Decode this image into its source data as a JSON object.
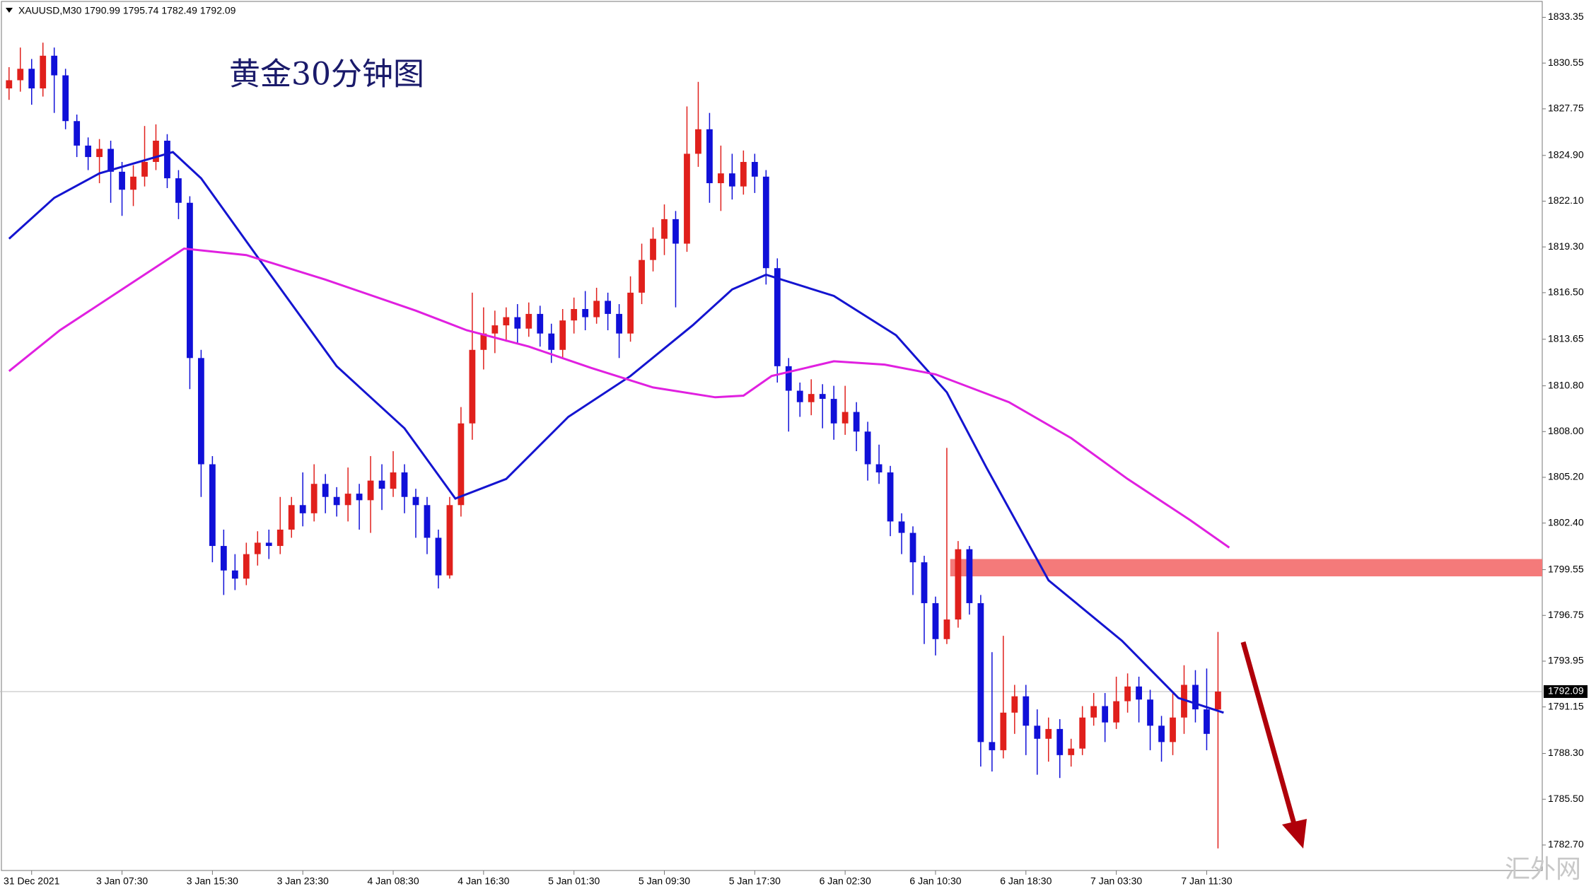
{
  "chart_data": {
    "type": "candlestick",
    "header": "XAUUSD,M30  1790.99 1795.74 1782.49 1792.09",
    "title": "黄金30分钟图",
    "watermark": "汇外网",
    "up_color": "#e0201c",
    "down_color": "#1010d8",
    "xlim": [
      -0.8,
      135.7
    ],
    "ylim": [
      1781.14,
      1834.41
    ],
    "xticks": [
      {
        "value": 2,
        "label": "31 Dec 2021"
      },
      {
        "value": 10,
        "label": "3 Jan 07:30"
      },
      {
        "value": 18,
        "label": "3 Jan 15:30"
      },
      {
        "value": 26,
        "label": "3 Jan 23:30"
      },
      {
        "value": 34,
        "label": "4 Jan 08:30"
      },
      {
        "value": 42,
        "label": "4 Jan 16:30"
      },
      {
        "value": 50,
        "label": "5 Jan 01:30"
      },
      {
        "value": 58,
        "label": "5 Jan 09:30"
      },
      {
        "value": 66,
        "label": "5 Jan 17:30"
      },
      {
        "value": 74,
        "label": "6 Jan 02:30"
      },
      {
        "value": 82,
        "label": "6 Jan 10:30"
      },
      {
        "value": 90,
        "label": "6 Jan 18:30"
      },
      {
        "value": 98,
        "label": "7 Jan 03:30"
      },
      {
        "value": 106,
        "label": "7 Jan 11:30"
      }
    ],
    "yticks": [
      1833.35,
      1830.55,
      1827.75,
      {
        "value": 1824.9,
        "label": "1824.90"
      },
      {
        "value": 1822.1,
        "label": "1822.10"
      },
      {
        "value": 1819.3,
        "label": "1819.30"
      },
      {
        "value": 1816.5,
        "label": "1816.50"
      },
      1813.65,
      {
        "value": 1810.8,
        "label": "1810.80"
      },
      {
        "value": 1808,
        "label": "1808.00"
      },
      {
        "value": 1805.2,
        "label": "1805.20"
      },
      {
        "value": 1802.4,
        "label": "1802.40"
      },
      1799.55,
      1796.75,
      1793.95,
      1791.15,
      {
        "value": 1788.3,
        "label": "1788.30"
      },
      {
        "value": 1785.5,
        "label": "1785.50"
      },
      {
        "value": 1782.7,
        "label": "1782.70"
      }
    ],
    "open": [
      1829.0,
      1829.5,
      1830.2,
      1829.0,
      1831.0,
      1829.8,
      1827.0,
      1825.5,
      1824.8,
      1825.3,
      1823.9,
      1822.8,
      1823.6,
      1824.5,
      1825.8,
      1823.5,
      1822.0,
      1812.5,
      1806.0,
      1801.0,
      1799.5,
      1799.0,
      1800.5,
      1801.2,
      1801.0,
      1802.0,
      1803.5,
      1803.0,
      1804.8,
      1804.0,
      1803.5,
      1804.2,
      1803.8,
      1805.0,
      1804.5,
      1805.5,
      1804.0,
      1803.5,
      1801.5,
      1799.2,
      1803.5,
      1808.5,
      1813.0,
      1814.0,
      1814.5,
      1815.0,
      1814.3,
      1815.2,
      1814.0,
      1813.0,
      1814.8,
      1815.5,
      1815.0,
      1816.0,
      1815.2,
      1814.0,
      1816.5,
      1818.5,
      1819.8,
      1821.0,
      1819.5,
      1825.0,
      1826.5,
      1823.2,
      1823.8,
      1823.0,
      1824.5,
      1823.6,
      1818.0,
      1812.0,
      1810.5,
      1809.8,
      1810.3,
      1810.0,
      1808.5,
      1809.2,
      1808.0,
      1806.0,
      1805.5,
      1802.5,
      1801.8,
      1800.0,
      1797.5,
      1795.3,
      1796.5,
      1800.8,
      1797.5,
      1789.0,
      1788.5,
      1790.8,
      1791.8,
      1790.0,
      1789.2,
      1789.8,
      1788.2,
      1788.6,
      1790.5,
      1791.2,
      1790.2,
      1791.5,
      1792.4,
      1791.6,
      1790.0,
      1789.0,
      1790.5,
      1792.5,
      1791.0,
      1790.99
    ],
    "high": [
      1830.3,
      1831.5,
      1830.8,
      1831.8,
      1831.5,
      1830.2,
      1827.4,
      1826.0,
      1825.9,
      1825.8,
      1824.5,
      1824.3,
      1826.7,
      1826.8,
      1826.2,
      1824.0,
      1822.4,
      1813.0,
      1806.5,
      1802.0,
      1800.5,
      1801.2,
      1801.9,
      1802.0,
      1804.0,
      1804.0,
      1805.5,
      1806.0,
      1805.4,
      1804.6,
      1805.8,
      1804.8,
      1806.5,
      1806.0,
      1806.8,
      1806.0,
      1804.5,
      1804.0,
      1802.0,
      1804.0,
      1809.5,
      1816.5,
      1815.6,
      1815.4,
      1815.6,
      1815.8,
      1815.9,
      1815.7,
      1814.6,
      1815.5,
      1816.2,
      1816.6,
      1816.8,
      1816.5,
      1815.8,
      1817.5,
      1819.5,
      1820.5,
      1821.9,
      1821.5,
      1827.9,
      1829.4,
      1827.5,
      1825.5,
      1825.0,
      1825.2,
      1825.0,
      1824.0,
      1818.6,
      1812.5,
      1811.0,
      1811.2,
      1810.9,
      1810.8,
      1810.8,
      1809.8,
      1808.6,
      1807.2,
      1805.9,
      1803.0,
      1802.2,
      1800.4,
      1797.9,
      1807.0,
      1801.3,
      1801.0,
      1798.0,
      1794.5,
      1795.5,
      1792.5,
      1792.5,
      1791.0,
      1790.5,
      1790.4,
      1789.2,
      1791.2,
      1792.0,
      1792.0,
      1793.0,
      1793.2,
      1793.0,
      1792.2,
      1790.6,
      1792.0,
      1793.7,
      1793.4,
      1793.5,
      1795.74
    ],
    "low": [
      1828.3,
      1828.8,
      1828.0,
      1828.5,
      1827.5,
      1826.5,
      1824.8,
      1824.0,
      1823.2,
      1822.0,
      1821.2,
      1821.8,
      1823.0,
      1824.0,
      1822.9,
      1821.0,
      1810.6,
      1804.0,
      1800.0,
      1798.0,
      1798.3,
      1798.6,
      1799.8,
      1800.2,
      1800.5,
      1801.5,
      1802.2,
      1802.5,
      1803.0,
      1802.8,
      1802.5,
      1802.0,
      1801.8,
      1803.2,
      1804.0,
      1803.0,
      1801.5,
      1800.5,
      1798.4,
      1799.0,
      1802.8,
      1807.5,
      1811.8,
      1812.8,
      1813.5,
      1813.4,
      1813.8,
      1813.2,
      1812.2,
      1812.5,
      1814.0,
      1814.2,
      1814.6,
      1814.2,
      1812.5,
      1813.5,
      1815.8,
      1817.8,
      1818.8,
      1815.6,
      1819.0,
      1824.2,
      1822.0,
      1821.5,
      1822.2,
      1822.5,
      1822.6,
      1817.0,
      1811.0,
      1808.0,
      1808.9,
      1809.0,
      1808.2,
      1807.5,
      1807.8,
      1806.8,
      1805.0,
      1804.8,
      1801.6,
      1800.5,
      1798.0,
      1795.0,
      1794.3,
      1795.0,
      1796.0,
      1796.8,
      1787.5,
      1787.2,
      1788.0,
      1789.5,
      1788.2,
      1787.0,
      1787.8,
      1786.8,
      1787.5,
      1788.2,
      1790.0,
      1789.0,
      1789.8,
      1790.8,
      1790.2,
      1788.5,
      1787.8,
      1788.2,
      1789.5,
      1790.2,
      1788.5,
      1782.49
    ],
    "close": [
      1829.5,
      1830.2,
      1829.0,
      1831.0,
      1829.8,
      1827.0,
      1825.5,
      1824.8,
      1825.3,
      1823.9,
      1822.8,
      1823.6,
      1824.5,
      1825.8,
      1823.5,
      1822.0,
      1812.5,
      1806.0,
      1801.0,
      1799.5,
      1799.0,
      1800.5,
      1801.2,
      1801.0,
      1802.0,
      1803.5,
      1803.0,
      1804.8,
      1804.0,
      1803.5,
      1804.2,
      1803.8,
      1805.0,
      1804.5,
      1805.5,
      1804.0,
      1803.5,
      1801.5,
      1799.2,
      1803.5,
      1808.5,
      1813.0,
      1814.0,
      1814.5,
      1815.0,
      1814.3,
      1815.2,
      1814.0,
      1813.0,
      1814.8,
      1815.5,
      1815.0,
      1816.0,
      1815.2,
      1814.0,
      1816.5,
      1818.5,
      1819.8,
      1821.0,
      1819.5,
      1825.0,
      1826.5,
      1823.2,
      1823.8,
      1823.0,
      1824.5,
      1823.6,
      1818.0,
      1812.0,
      1810.5,
      1809.8,
      1810.3,
      1810.0,
      1808.5,
      1809.2,
      1808.0,
      1806.0,
      1805.5,
      1802.5,
      1801.8,
      1800.0,
      1797.5,
      1795.3,
      1796.5,
      1800.8,
      1797.5,
      1789.0,
      1788.5,
      1790.8,
      1791.8,
      1790.0,
      1789.2,
      1789.8,
      1788.2,
      1788.6,
      1790.5,
      1791.2,
      1790.2,
      1791.5,
      1792.4,
      1791.6,
      1790.0,
      1789.0,
      1790.5,
      1792.5,
      1791.0,
      1789.5,
      1792.09
    ],
    "series": [
      {
        "color": "#1414d0",
        "x": [
          0,
          4,
          8,
          14.5,
          17,
          22.5,
          29,
          35,
          39.5,
          44,
          49.5,
          55,
          60.5,
          64,
          67,
          73,
          78.5,
          83,
          86.5,
          92,
          98.5,
          103.5,
          107.5
        ],
        "values": [
          1819.8,
          1822.3,
          1823.8,
          1825.1,
          1823.5,
          1818.2,
          1812.0,
          1808.2,
          1803.9,
          1805.1,
          1808.9,
          1811.4,
          1814.5,
          1816.7,
          1817.6,
          1816.3,
          1813.9,
          1810.4,
          1805.8,
          1798.9,
          1795.2,
          1791.7,
          1790.8
        ]
      },
      {
        "color": "#e020e0",
        "x": [
          0,
          4.5,
          10,
          15.5,
          21,
          28,
          36,
          40.5,
          46,
          51.5,
          57,
          62.5,
          65,
          67.5,
          73,
          77.5,
          82,
          88.5,
          94,
          99,
          104.5,
          108
        ],
        "values": [
          1811.7,
          1814.2,
          1816.7,
          1819.2,
          1818.8,
          1817.3,
          1815.4,
          1814.2,
          1813.2,
          1811.9,
          1810.7,
          1810.1,
          1810.2,
          1811.4,
          1812.3,
          1812.1,
          1811.5,
          1809.8,
          1807.6,
          1805.1,
          1802.6,
          1800.9
        ]
      }
    ],
    "zone": {
      "x_start": 83.3,
      "from": 1799.14,
      "to": 1800.2,
      "color": "#f47a7a"
    }
  }
}
